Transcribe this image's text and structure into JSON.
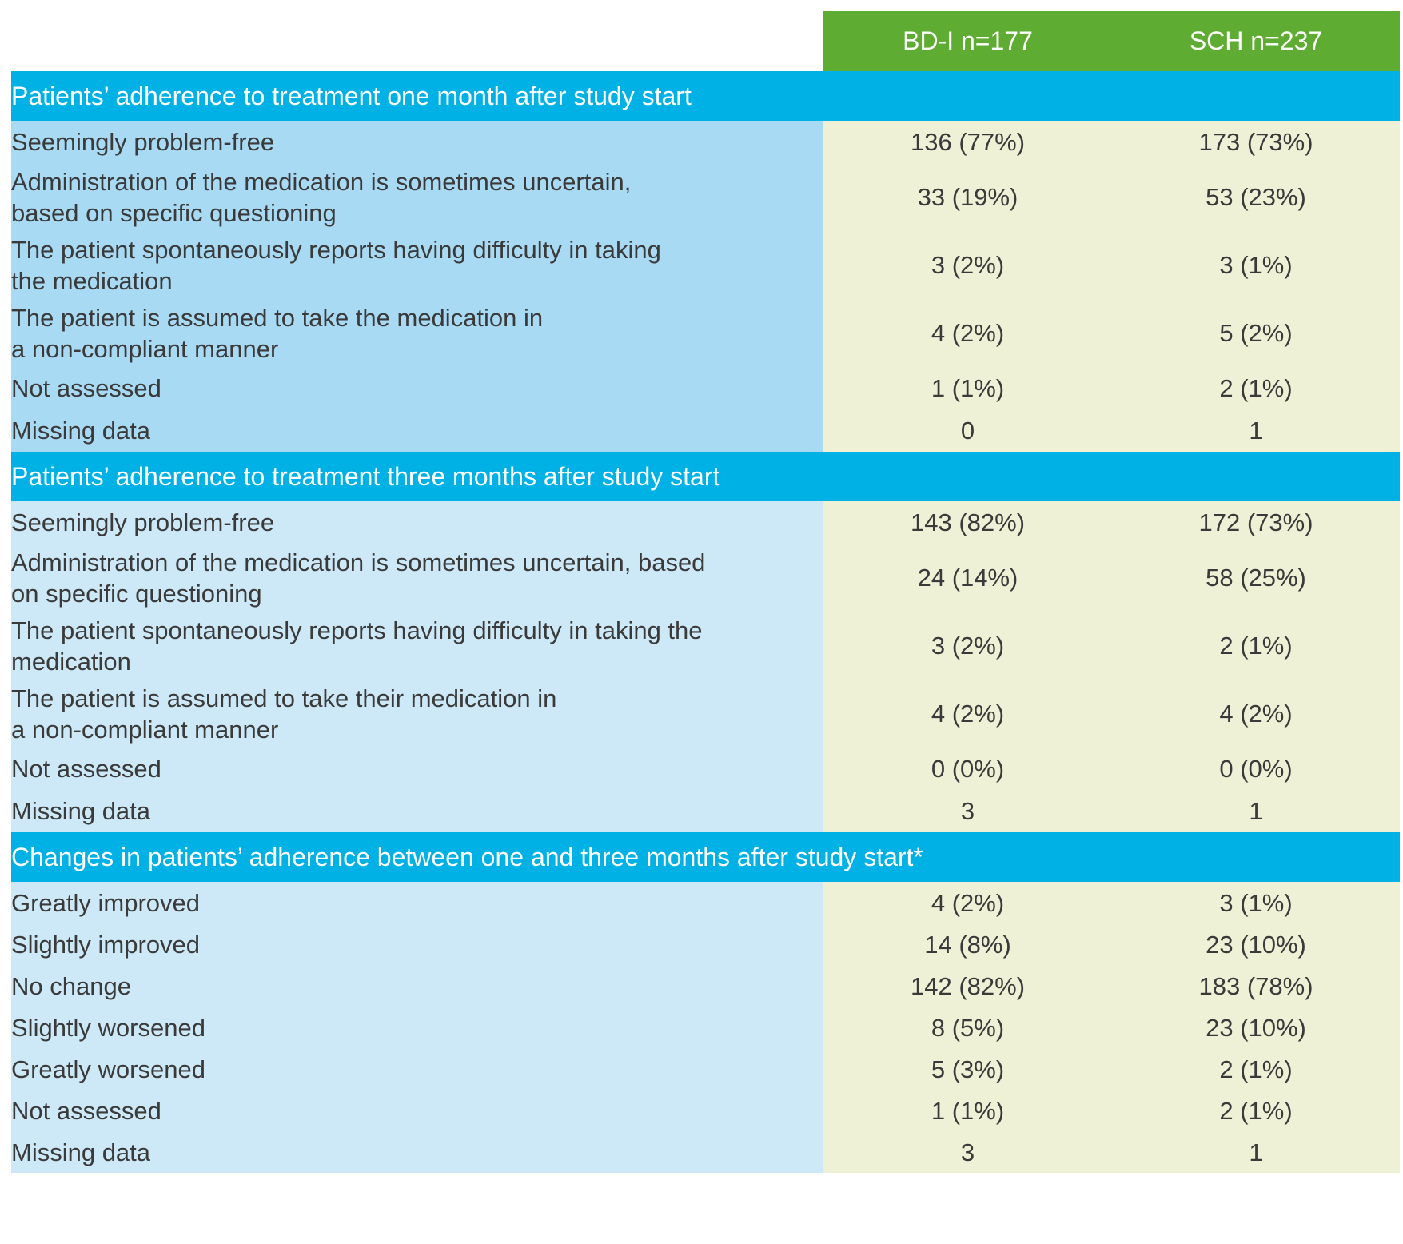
{
  "header": {
    "col_a": "BD-I n=177",
    "col_b": "SCH n=237"
  },
  "sections": [
    {
      "title": "Patients’ adherence to treatment one month after study start",
      "rows": [
        {
          "label_lines": [
            "Seemingly problem-free"
          ],
          "a": "136 (77%)",
          "b": "173 (73%)"
        },
        {
          "label_lines": [
            "Administration of the medication is sometimes uncertain,",
            "based on specific questioning"
          ],
          "a": "33 (19%)",
          "b": "53 (23%)"
        },
        {
          "label_lines": [
            "The patient spontaneously reports having difficulty in taking",
            "the medication"
          ],
          "a": "3 (2%)",
          "b": "3 (1%)"
        },
        {
          "label_lines": [
            "The patient is assumed to take the medication in",
            "a non-compliant manner"
          ],
          "a": "4 (2%)",
          "b": "5 (2%)"
        },
        {
          "label_lines": [
            "Not assessed"
          ],
          "a": "1 (1%)",
          "b": "2 (1%)"
        },
        {
          "label_lines": [
            "Missing data"
          ],
          "a": "0",
          "b": "1"
        }
      ]
    },
    {
      "title": "Patients’ adherence to treatment three months after study start",
      "rows": [
        {
          "label_lines": [
            "Seemingly problem-free"
          ],
          "a": "143 (82%)",
          "b": "172 (73%)"
        },
        {
          "label_lines": [
            "Administration of the medication is sometimes uncertain, based",
            "on specific questioning"
          ],
          "a": "24 (14%)",
          "b": "58 (25%)"
        },
        {
          "label_lines": [
            "The patient spontaneously reports having difficulty in taking the",
            "medication"
          ],
          "a": "3 (2%)",
          "b": "2 (1%)"
        },
        {
          "label_lines": [
            "The patient is assumed to take their medication in",
            "a non-compliant manner"
          ],
          "a": "4 (2%)",
          "b": "4 (2%)"
        },
        {
          "label_lines": [
            "Not assessed"
          ],
          "a": "0 (0%)",
          "b": "0 (0%)"
        },
        {
          "label_lines": [
            "Missing data"
          ],
          "a": "3",
          "b": "1"
        }
      ]
    },
    {
      "title": "Changes in patients’ adherence between one and three months after study start*",
      "rows": [
        {
          "label_lines": [
            "Greatly improved"
          ],
          "a": "4 (2%)",
          "b": "3 (1%)"
        },
        {
          "label_lines": [
            "Slightly improved"
          ],
          "a": "14 (8%)",
          "b": "23 (10%)"
        },
        {
          "label_lines": [
            "No change"
          ],
          "a": "142 (82%)",
          "b": "183 (78%)"
        },
        {
          "label_lines": [
            "Slightly worsened"
          ],
          "a": "8 (5%)",
          "b": "23 (10%)"
        },
        {
          "label_lines": [
            "Greatly worsened"
          ],
          "a": "5 (3%)",
          "b": "2 (1%)"
        },
        {
          "label_lines": [
            "Not assessed"
          ],
          "a": "1 (1%)",
          "b": "2 (1%)"
        },
        {
          "label_lines": [
            "Missing data"
          ],
          "a": "3",
          "b": "1"
        }
      ]
    }
  ],
  "colors": {
    "header_green": "#5eac32",
    "section_blue": "#00b1e6",
    "label_blue_dark": "#a9daf4",
    "label_blue_light": "#cde9f7",
    "value_cream": "#eef1d6"
  }
}
